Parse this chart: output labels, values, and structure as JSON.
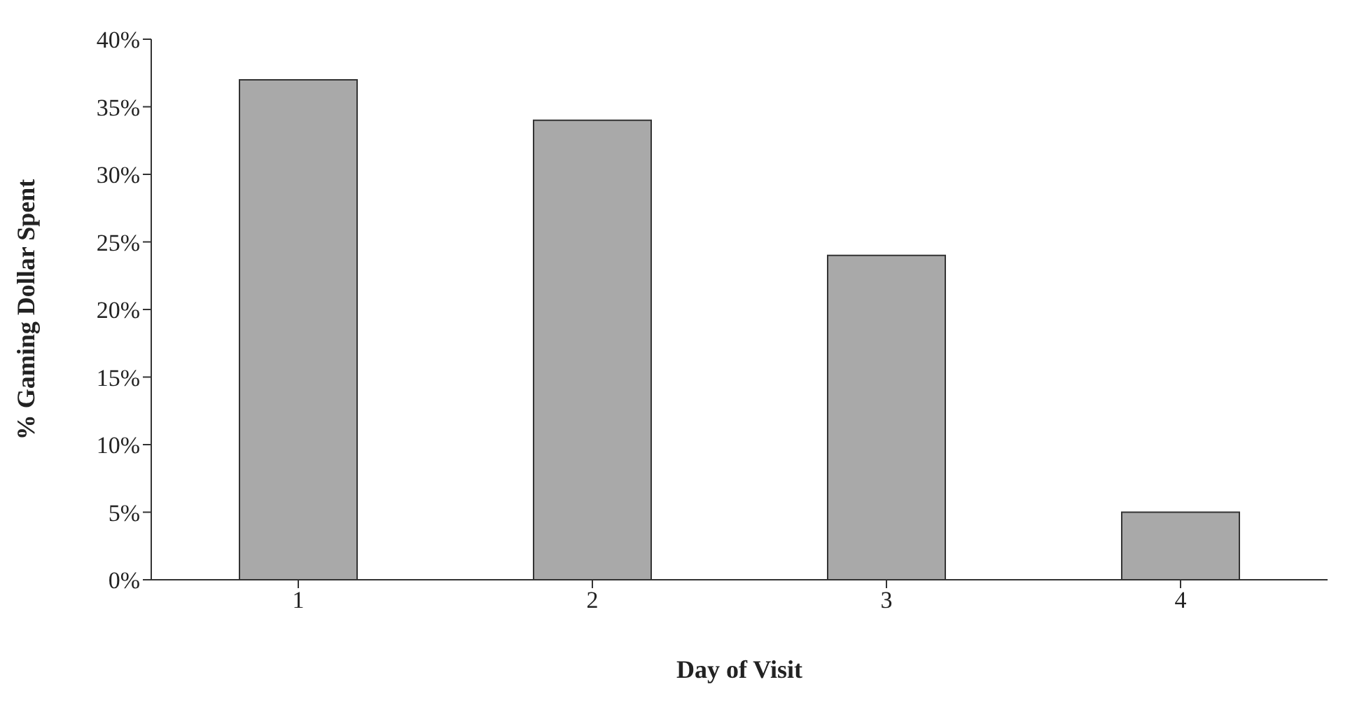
{
  "chart_data": {
    "type": "bar",
    "xlabel": "Day of Visit",
    "ylabel": "% Gaming Dollar Spent",
    "categories": [
      "1",
      "2",
      "3",
      "4"
    ],
    "values": [
      37,
      34,
      24,
      5
    ],
    "color": "#a9a9a9",
    "ylim": [
      0,
      40
    ],
    "yticks": [
      {
        "value": 0,
        "label": "0%"
      },
      {
        "value": 5,
        "label": "5%"
      },
      {
        "value": 10,
        "label": "10%"
      },
      {
        "value": 15,
        "label": "15%"
      },
      {
        "value": 20,
        "label": "20%"
      },
      {
        "value": 25,
        "label": "25%"
      },
      {
        "value": 30,
        "label": "30%"
      },
      {
        "value": 35,
        "label": "35%"
      },
      {
        "value": 40,
        "label": "40%"
      }
    ],
    "grid": false,
    "legend": false
  }
}
